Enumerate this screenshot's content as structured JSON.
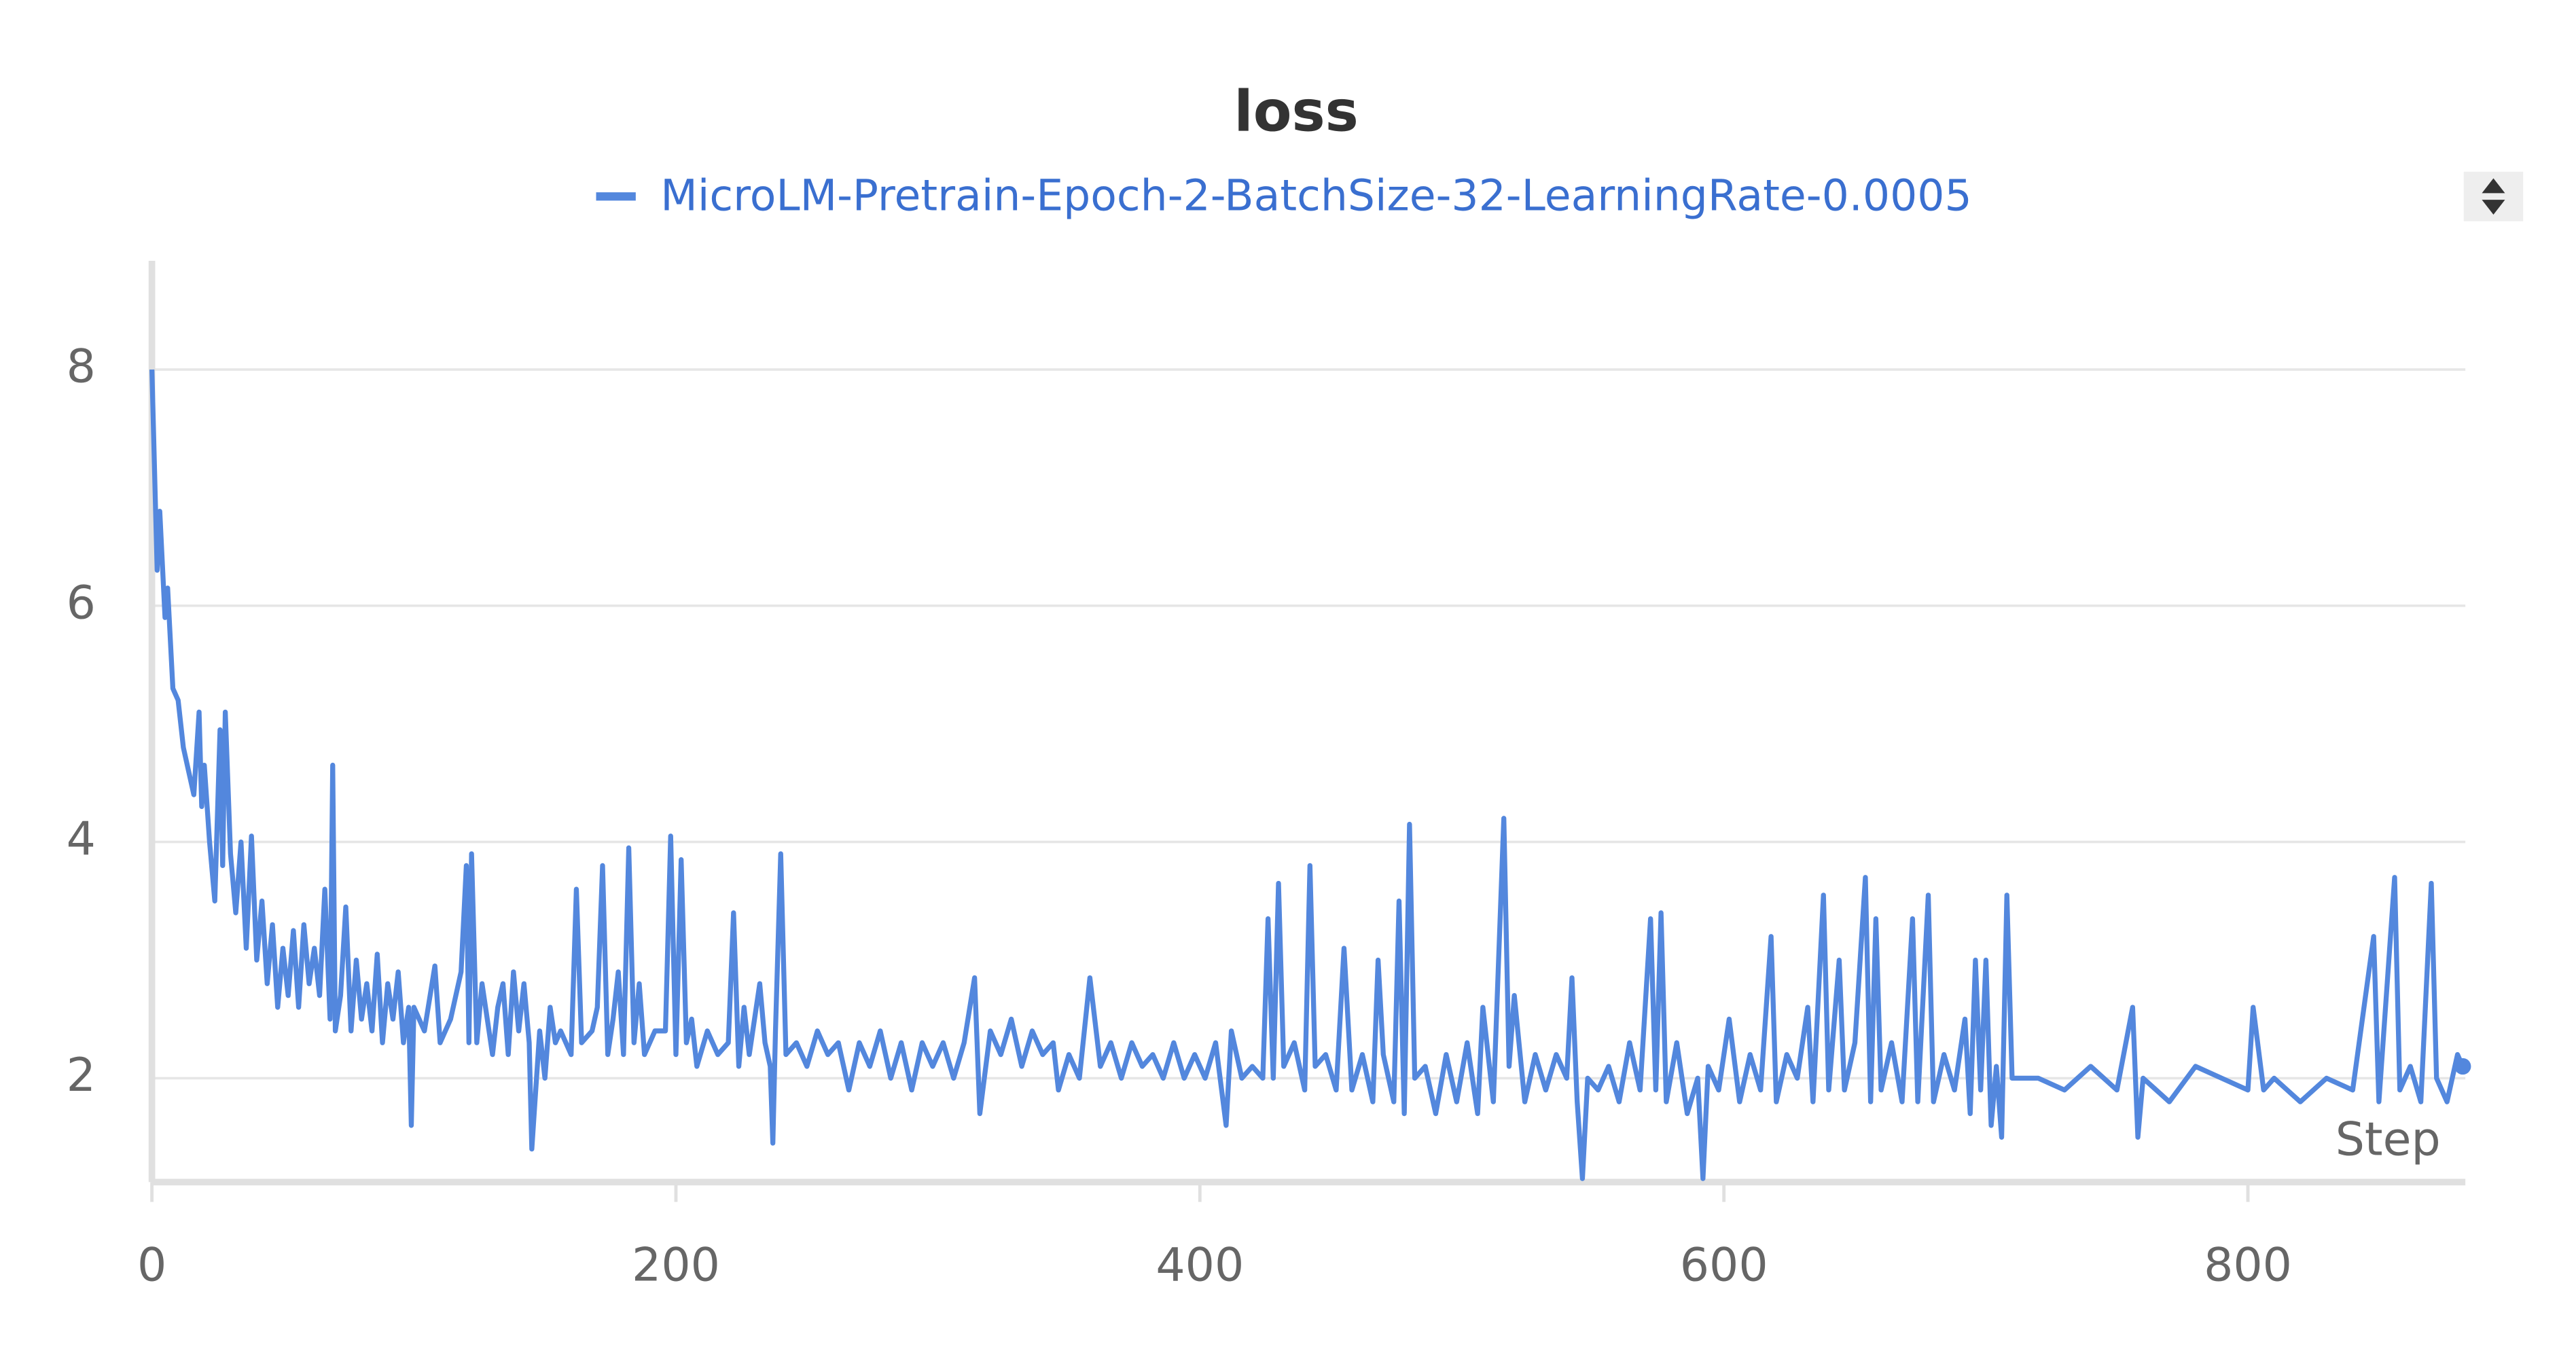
{
  "chart_data": {
    "type": "line",
    "title": "loss",
    "x_label": "Step",
    "legend_position": "top",
    "grid": true,
    "xlim": [
      0,
      883
    ],
    "xticks": [
      0,
      200,
      400,
      600,
      800
    ],
    "ylim": [
      1.12,
      8.92
    ],
    "yticks": [
      2,
      4,
      6,
      8
    ],
    "x": [
      0,
      2,
      3,
      5,
      6,
      8,
      10,
      12,
      14,
      16,
      18,
      19,
      20,
      22,
      24,
      26,
      27,
      28,
      30,
      32,
      34,
      36,
      38,
      40,
      42,
      44,
      46,
      48,
      50,
      52,
      54,
      56,
      58,
      60,
      62,
      64,
      66,
      68,
      69,
      70,
      72,
      74,
      76,
      78,
      80,
      82,
      84,
      86,
      88,
      90,
      92,
      94,
      96,
      98,
      99,
      100,
      104,
      108,
      110,
      114,
      118,
      120,
      121,
      122,
      124,
      126,
      128,
      130,
      132,
      134,
      136,
      138,
      140,
      142,
      144,
      145,
      148,
      150,
      152,
      154,
      156,
      160,
      162,
      164,
      168,
      170,
      172,
      174,
      176,
      178,
      180,
      182,
      184,
      186,
      188,
      192,
      196,
      198,
      200,
      202,
      204,
      206,
      208,
      212,
      216,
      220,
      222,
      224,
      226,
      228,
      232,
      234,
      236,
      237,
      238,
      240,
      242,
      246,
      250,
      254,
      258,
      262,
      266,
      270,
      274,
      278,
      282,
      286,
      290,
      294,
      298,
      302,
      306,
      310,
      314,
      316,
      320,
      324,
      328,
      332,
      336,
      340,
      344,
      346,
      350,
      354,
      358,
      362,
      366,
      370,
      374,
      378,
      382,
      386,
      390,
      394,
      398,
      402,
      406,
      410,
      412,
      416,
      420,
      424,
      426,
      428,
      430,
      432,
      436,
      440,
      442,
      444,
      448,
      452,
      455,
      458,
      462,
      466,
      468,
      470,
      474,
      476,
      478,
      480,
      482,
      486,
      490,
      494,
      498,
      502,
      506,
      508,
      512,
      516,
      518,
      520,
      524,
      528,
      532,
      536,
      540,
      542,
      544,
      546,
      548,
      552,
      556,
      560,
      564,
      568,
      572,
      574,
      576,
      578,
      582,
      586,
      590,
      592,
      594,
      598,
      602,
      606,
      610,
      614,
      618,
      620,
      624,
      628,
      632,
      634,
      638,
      640,
      644,
      646,
      650,
      654,
      656,
      658,
      660,
      664,
      668,
      672,
      674,
      678,
      680,
      684,
      688,
      692,
      694,
      696,
      698,
      700,
      702,
      704,
      706,
      708,
      710,
      720,
      730,
      740,
      750,
      756,
      758,
      760,
      770,
      780,
      790,
      800,
      802,
      806,
      810,
      820,
      830,
      840,
      848,
      850,
      856,
      858,
      862,
      866,
      870,
      872,
      876,
      880,
      882
    ],
    "series": [
      {
        "name": "MicroLM-Pretrain-Epoch-2-BatchSize-32-LearningRate-0.0005",
        "color": "#5387dd",
        "values": [
          8.0,
          6.3,
          6.8,
          5.9,
          6.15,
          5.3,
          5.2,
          4.8,
          4.6,
          4.4,
          5.1,
          4.3,
          4.65,
          4.0,
          3.5,
          4.95,
          3.8,
          5.1,
          3.9,
          3.4,
          4.0,
          3.1,
          4.05,
          3.0,
          3.5,
          2.8,
          3.3,
          2.6,
          3.1,
          2.7,
          3.25,
          2.6,
          3.3,
          2.8,
          3.1,
          2.7,
          3.6,
          2.5,
          4.65,
          2.4,
          2.7,
          3.45,
          2.4,
          3.0,
          2.5,
          2.8,
          2.4,
          3.05,
          2.3,
          2.8,
          2.5,
          2.9,
          2.3,
          2.6,
          1.6,
          2.6,
          2.4,
          2.95,
          2.3,
          2.5,
          2.9,
          3.8,
          2.3,
          3.9,
          2.3,
          2.8,
          2.5,
          2.2,
          2.6,
          2.8,
          2.2,
          2.9,
          2.4,
          2.8,
          2.3,
          1.4,
          2.4,
          2.0,
          2.6,
          2.3,
          2.4,
          2.2,
          3.6,
          2.3,
          2.4,
          2.6,
          3.8,
          2.2,
          2.5,
          2.9,
          2.2,
          3.95,
          2.3,
          2.8,
          2.2,
          2.4,
          2.4,
          4.05,
          2.2,
          3.85,
          2.3,
          2.5,
          2.1,
          2.4,
          2.2,
          2.3,
          3.4,
          2.1,
          2.6,
          2.2,
          2.8,
          2.3,
          2.1,
          1.45,
          2.4,
          3.9,
          2.2,
          2.3,
          2.1,
          2.4,
          2.2,
          2.3,
          1.9,
          2.3,
          2.1,
          2.4,
          2.0,
          2.3,
          1.9,
          2.3,
          2.1,
          2.3,
          2.0,
          2.3,
          2.85,
          1.7,
          2.4,
          2.2,
          2.5,
          2.1,
          2.4,
          2.2,
          2.3,
          1.9,
          2.2,
          2.0,
          2.85,
          2.1,
          2.3,
          2.0,
          2.3,
          2.1,
          2.2,
          2.0,
          2.3,
          2.0,
          2.2,
          2.0,
          2.3,
          1.6,
          2.4,
          2.0,
          2.1,
          2.0,
          3.35,
          2.0,
          3.65,
          2.1,
          2.3,
          1.9,
          3.8,
          2.1,
          2.2,
          1.9,
          3.1,
          1.9,
          2.2,
          1.8,
          3.0,
          2.2,
          1.8,
          3.5,
          1.7,
          4.15,
          2.0,
          2.1,
          1.7,
          2.2,
          1.8,
          2.3,
          1.7,
          2.6,
          1.8,
          4.2,
          2.1,
          2.7,
          1.8,
          2.2,
          1.9,
          2.2,
          2.0,
          2.85,
          1.8,
          1.15,
          2.0,
          1.9,
          2.1,
          1.8,
          2.3,
          1.9,
          3.35,
          1.9,
          3.4,
          1.8,
          2.3,
          1.7,
          2.0,
          1.15,
          2.1,
          1.9,
          2.5,
          1.8,
          2.2,
          1.9,
          3.2,
          1.8,
          2.2,
          2.0,
          2.6,
          1.8,
          3.55,
          1.9,
          3.0,
          1.9,
          2.3,
          3.7,
          1.8,
          3.35,
          1.9,
          2.3,
          1.8,
          3.35,
          1.8,
          3.55,
          1.8,
          2.2,
          1.9,
          2.5,
          1.7,
          3.0,
          1.9,
          3.0,
          1.6,
          2.1,
          1.5,
          3.55,
          2.0,
          2.0,
          1.9,
          2.1,
          1.9,
          2.6,
          1.5,
          2.0,
          1.8,
          2.1,
          2.0,
          1.9,
          2.6,
          1.9,
          2.0,
          1.8,
          2.0,
          1.9,
          3.2,
          1.8,
          3.7,
          1.9,
          2.1,
          1.8,
          3.65,
          2.0,
          1.8,
          2.2,
          2.1
        ]
      }
    ]
  }
}
